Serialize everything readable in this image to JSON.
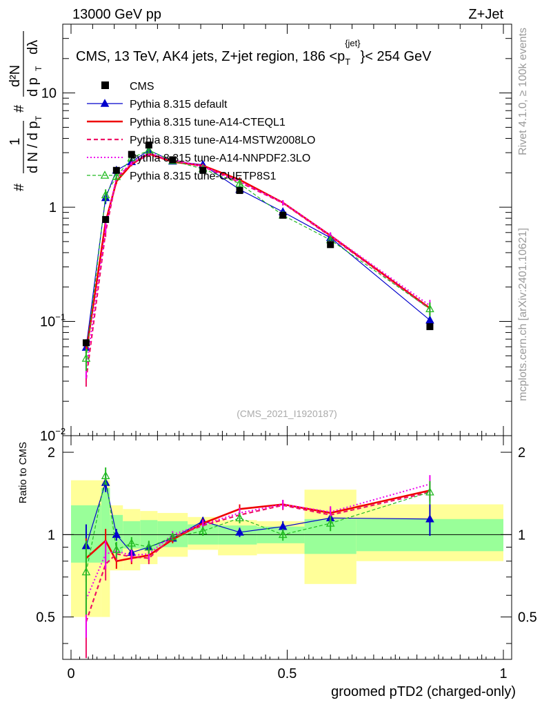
{
  "header": {
    "left": "13000 GeV pp",
    "right": "Z+Jet"
  },
  "side": {
    "top": "Rivet 4.1.0, ≥ 100k events",
    "bottom": "mcplots.cern.ch [arXiv:2401.10621]"
  },
  "chart_data": {
    "type": "line",
    "title": "CMS, 13 TeV, AK4 jets, Z+jet region, 186 <p_T^{jet}< 254 GeV",
    "title_parts": {
      "main": "CMS, 13 TeV, AK4 jets, Z+jet region, 186 <p",
      "sub": "T",
      "sup": "{jet}",
      "tail": "}< 254 GeV"
    },
    "analysis_label": "(CMS_2021_I1920187)",
    "xlabel": "groomed pTD2 (charged-only)",
    "ylabel_parts": {
      "frac_top": "1",
      "frac_bot": "d N / d p",
      "hash": "#",
      "d2n_top": "d²N",
      "d2n_bot": "d p",
      "dl": "dλ",
      "T": "T"
    },
    "ratio_ylabel": "Ratio to CMS",
    "xlim": [
      0,
      1
    ],
    "ylim": [
      0.01,
      40
    ],
    "ratio_ylim": [
      0.35,
      2.3
    ],
    "x_ticks": [
      {
        "v": 0,
        "label": "0"
      },
      {
        "v": 0.5,
        "label": "0.5"
      },
      {
        "v": 1,
        "label": "1"
      }
    ],
    "y_ticks": [
      {
        "v": 0.01,
        "label": "10",
        "sup": "−2"
      },
      {
        "v": 0.1,
        "label": "10",
        "sup": "−1"
      },
      {
        "v": 1,
        "label": "1",
        "sup": ""
      },
      {
        "v": 10,
        "label": "10",
        "sup": ""
      }
    ],
    "ratio_ticks": [
      {
        "v": 0.5,
        "label": "0.5"
      },
      {
        "v": 1,
        "label": "1"
      },
      {
        "v": 2,
        "label": "2"
      }
    ],
    "bins": [
      [
        0.0,
        0.07
      ],
      [
        0.07,
        0.09
      ],
      [
        0.09,
        0.12
      ],
      [
        0.12,
        0.16
      ],
      [
        0.16,
        0.2
      ],
      [
        0.2,
        0.27
      ],
      [
        0.27,
        0.34
      ],
      [
        0.34,
        0.43
      ],
      [
        0.43,
        0.54
      ],
      [
        0.54,
        0.66
      ],
      [
        0.66,
        1.0
      ]
    ],
    "x": [
      0.035,
      0.08,
      0.105,
      0.14,
      0.18,
      0.235,
      0.305,
      0.39,
      0.49,
      0.6,
      0.83
    ],
    "data": {
      "name": "CMS",
      "values": [
        0.065,
        0.78,
        2.1,
        2.9,
        3.5,
        2.6,
        2.1,
        1.4,
        0.85,
        0.47,
        0.09
      ]
    },
    "band_inner": [
      1.28,
      1.48,
      1.18,
      1.12,
      1.13,
      1.12,
      1.09,
      1.08,
      1.07,
      1.14,
      1.14
    ],
    "band_inner_lo": [
      0.79,
      0.79,
      0.86,
      0.89,
      0.88,
      0.9,
      0.92,
      0.92,
      0.93,
      0.85,
      0.87
    ],
    "band_outer": [
      1.58,
      1.58,
      1.28,
      1.24,
      1.22,
      1.2,
      1.16,
      1.13,
      1.12,
      1.46,
      1.29
    ],
    "band_outer_lo": [
      0.5,
      0.5,
      0.74,
      0.74,
      0.78,
      0.83,
      0.88,
      0.84,
      0.85,
      0.66,
      0.8
    ],
    "series": [
      {
        "name": "Pythia 8.315 default",
        "color": "#0000cc",
        "dash": "",
        "width": 1.2,
        "marker": "tri",
        "ratio": [
          0.91,
          1.55,
          1.0,
          0.86,
          0.9,
          0.97,
          1.12,
          1.02,
          1.07,
          1.15,
          1.14
        ],
        "err": [
          0.18,
          0.12,
          0.05,
          0.04,
          0.04,
          0.03,
          0.04,
          0.04,
          0.05,
          0.06,
          0.15
        ]
      },
      {
        "name": "Pythia 8.315 tune-A14-CTEQL1",
        "color": "#ee0000",
        "dash": "",
        "width": 2.6,
        "marker": "",
        "ratio": [
          0.82,
          0.95,
          0.8,
          0.82,
          0.84,
          0.96,
          1.1,
          1.24,
          1.29,
          1.2,
          1.45
        ],
        "err": [
          0.15,
          0.1,
          0.05,
          0.04,
          0.04,
          0.03,
          0.04,
          0.05,
          0.05,
          0.06,
          0.12
        ]
      },
      {
        "name": "Pythia 8.315 tune-A14-MSTW2008LO",
        "color": "#ee1166",
        "dash": "6,4",
        "width": 2.2,
        "marker": "",
        "ratio": [
          0.48,
          0.78,
          0.85,
          0.83,
          0.82,
          0.98,
          1.08,
          1.18,
          1.28,
          1.18,
          1.43
        ],
        "err": [
          0.14,
          0.1,
          0.05,
          0.04,
          0.04,
          0.03,
          0.04,
          0.05,
          0.05,
          0.06,
          0.12
        ]
      },
      {
        "name": "Pythia 8.315 tune-A14-NNPDF2.3LO",
        "color": "#ee00ee",
        "dash": "2,3",
        "width": 2.0,
        "marker": "",
        "ratio": [
          0.58,
          0.85,
          0.87,
          0.84,
          0.85,
          1.0,
          1.09,
          1.2,
          1.29,
          1.21,
          1.53
        ],
        "err": [
          0.16,
          0.1,
          0.05,
          0.04,
          0.04,
          0.03,
          0.04,
          0.05,
          0.05,
          0.06,
          0.12
        ]
      },
      {
        "name": "Pythia 8.315 tune-CUETP8S1",
        "color": "#22bb22",
        "dash": "5,3",
        "width": 1.2,
        "marker": "otri",
        "ratio": [
          0.73,
          1.64,
          0.88,
          0.93,
          0.9,
          0.98,
          1.03,
          1.15,
          1.0,
          1.1,
          1.43
        ],
        "err": [
          0.22,
          0.12,
          0.06,
          0.05,
          0.05,
          0.03,
          0.04,
          0.05,
          0.05,
          0.07,
          0.14
        ]
      }
    ]
  }
}
